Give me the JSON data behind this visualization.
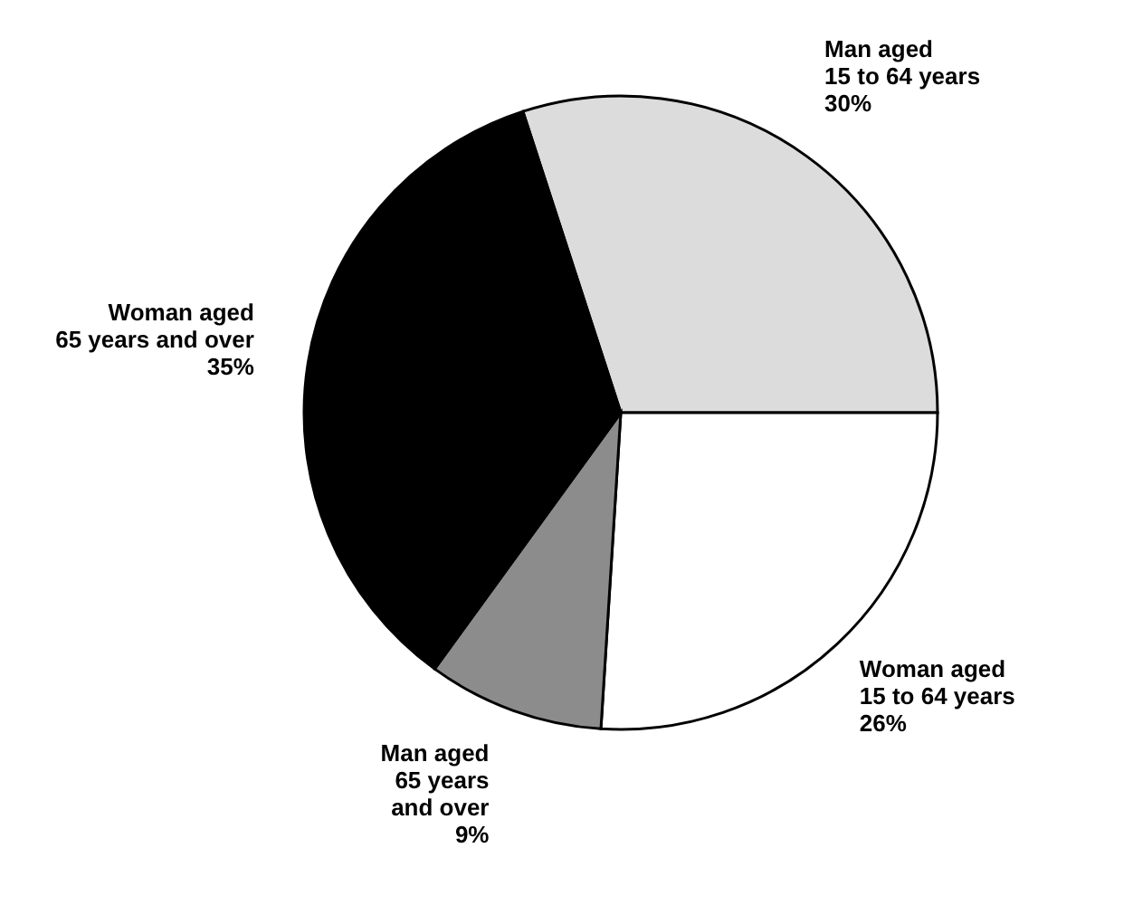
{
  "chart_data": {
    "type": "pie",
    "categories": [
      "Man aged\n15 to 64 years",
      "Woman aged\n15 to 64 years",
      "Man aged\n65 years\nand over",
      "Woman aged\n65 years and over"
    ],
    "values": [
      30,
      26,
      9,
      35
    ],
    "value_labels": [
      "30%",
      "26%",
      "9%",
      "35%"
    ],
    "colors": [
      "#dcdcdc",
      "#ffffff",
      "#8c8c8c",
      "#000000"
    ],
    "legend": false
  }
}
